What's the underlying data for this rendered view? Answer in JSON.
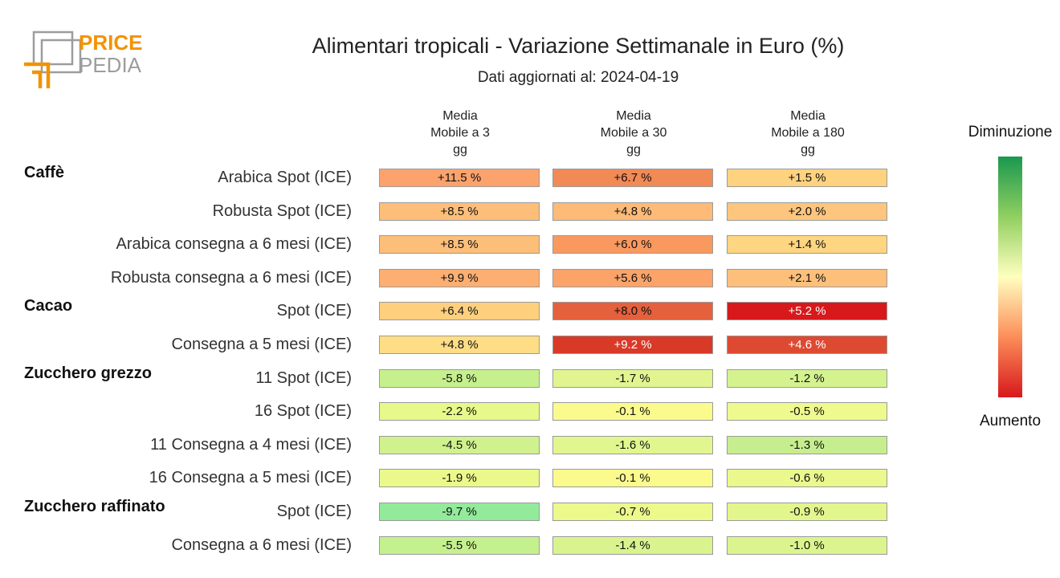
{
  "logo": {
    "line1": "PRICE",
    "line2": "PEDIA",
    "accent": "#f39200",
    "gray": "#9d9d9c"
  },
  "chart_data": {
    "type": "table",
    "title": "Alimentari tropicali - Variazione Settimanale in Euro (%)",
    "subtitle": "Dati aggiornati al: 2024-04-19",
    "columns": [
      "Media\nMobile a 3\ngg",
      "Media\nMobile a 30\ngg",
      "Media\nMobile a 180\ngg"
    ],
    "groups": [
      {
        "name": "Caffè",
        "rows": [
          {
            "label": "Arabica Spot (ICE)",
            "labels": [
              "+11.5 %",
              "+6.7 %",
              "+1.5 %"
            ],
            "colors": [
              "#fca36d",
              "#f28a55",
              "#fed27f"
            ]
          },
          {
            "label": "Robusta Spot (ICE)",
            "labels": [
              "+8.5 %",
              "+4.8 %",
              "+2.0 %"
            ],
            "colors": [
              "#fdbe79",
              "#fdbb77",
              "#fdc57d"
            ]
          },
          {
            "label": "Arabica consegna a 6 mesi (ICE)",
            "labels": [
              "+8.5 %",
              "+6.0 %",
              "+1.4 %"
            ],
            "colors": [
              "#fdbe79",
              "#f9995f",
              "#fed580"
            ]
          },
          {
            "label": "Robusta consegna a 6 mesi (ICE)",
            "labels": [
              "+9.9 %",
              "+5.6 %",
              "+2.1 %"
            ],
            "colors": [
              "#fdaf71",
              "#fca36a",
              "#fdc07b"
            ]
          }
        ]
      },
      {
        "name": "Cacao",
        "rows": [
          {
            "label": "Spot (ICE)",
            "labels": [
              "+6.4 %",
              "+8.0 %",
              "+5.2 %"
            ],
            "colors": [
              "#fed07e",
              "#e5603c",
              "#d7191c"
            ]
          },
          {
            "label": "Consegna a 5 mesi (ICE)",
            "labels": [
              "+4.8 %",
              "+9.2 %",
              "+4.6 %"
            ],
            "colors": [
              "#fedd85",
              "#d93a28",
              "#de4a31"
            ]
          }
        ]
      },
      {
        "name": "Zucchero grezzo",
        "rows": [
          {
            "label": "11 Spot (ICE)",
            "labels": [
              "-5.8 %",
              "-1.7 %",
              "-1.2 %"
            ],
            "colors": [
              "#c6f08d",
              "#e0f590",
              "#d4f38f"
            ]
          },
          {
            "label": "16 Spot (ICE)",
            "labels": [
              "-2.2 %",
              "-0.1 %",
              "-0.5 %"
            ],
            "colors": [
              "#e6f98a",
              "#fbfb8d",
              "#eefa8d"
            ]
          },
          {
            "label": "11 Consegna a 4 mesi (ICE)",
            "labels": [
              "-4.5 %",
              "-1.6 %",
              "-1.3 %"
            ],
            "colors": [
              "#d0f28e",
              "#e2f690",
              "#c7ee8e"
            ]
          },
          {
            "label": "16 Consegna a 5 mesi (ICE)",
            "labels": [
              "-1.9 %",
              "-0.1 %",
              "-0.6 %"
            ],
            "colors": [
              "#ebf98b",
              "#fbfb8d",
              "#eaf88d"
            ]
          }
        ]
      },
      {
        "name": "Zucchero raffinato",
        "rows": [
          {
            "label": "Spot (ICE)",
            "labels": [
              "-9.7 %",
              "-0.7 %",
              "-0.9 %"
            ],
            "colors": [
              "#92ea9a",
              "#ecf98b",
              "#e3f68d"
            ]
          },
          {
            "label": "Consegna a 6 mesi (ICE)",
            "labels": [
              "-5.5 %",
              "-1.4 %",
              "-1.0 %"
            ],
            "colors": [
              "#c5f08e",
              "#d9f48f",
              "#dcf48e"
            ]
          }
        ]
      }
    ],
    "legend": {
      "top": "Diminuzione",
      "bottom": "Aumento"
    }
  }
}
